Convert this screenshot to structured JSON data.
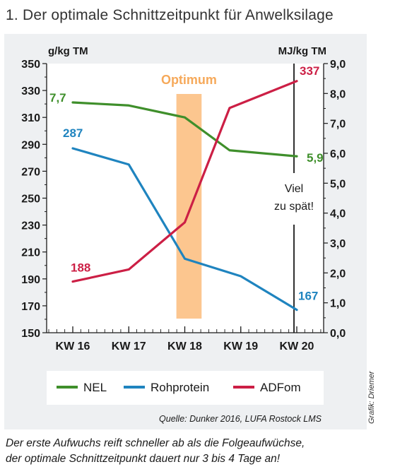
{
  "title": "1.  Der optimale Schnittzeitpunkt für Anwelksilage",
  "caption_line1": "Der erste Aufwuchs reift schneller ab als die Folgeaufwüchse,",
  "caption_line2": "der optimale Schnittzeitpunkt dauert nur 3 bis 4 Tage an!",
  "credit": "Grafik: Driemer",
  "chart_data": {
    "type": "line",
    "title": "Der optimale Schnittzeitpunkt für Anwelksilage",
    "categories": [
      "KW 16",
      "KW 17",
      "KW 18",
      "KW 19",
      "KW 20"
    ],
    "ylabel_left": "g/kg TM",
    "ylabel_right": "MJ/kg TM",
    "ylim_left": [
      150,
      350
    ],
    "yticks_left": [
      "350",
      "330",
      "310",
      "290",
      "270",
      "250",
      "230",
      "210",
      "190",
      "170",
      "150"
    ],
    "ylim_right": [
      0,
      9
    ],
    "yticks_right": [
      "9,0",
      "8,0",
      "7,0",
      "6,0",
      "5,0",
      "4,0",
      "3,0",
      "2,0",
      "1,0",
      "0,0"
    ],
    "series": [
      {
        "name": "NEL",
        "axis": "right",
        "color": "#3f8f2b",
        "x": [
          16,
          17,
          18,
          18.8,
          20
        ],
        "values": [
          7.7,
          7.6,
          7.2,
          6.1,
          5.9
        ],
        "start_label": "7,7",
        "end_label": "5,9"
      },
      {
        "name": "Rohprotein",
        "axis": "left",
        "color": "#1f84bf",
        "x": [
          16,
          17,
          18,
          19,
          20
        ],
        "values": [
          287,
          275,
          205,
          192,
          167
        ],
        "start_label": "287",
        "end_label": "167"
      },
      {
        "name": "ADFom",
        "axis": "left",
        "color": "#cc1f45",
        "x": [
          16,
          17,
          18,
          18.8,
          20
        ],
        "values": [
          188,
          197,
          232,
          317,
          337
        ],
        "start_label": "188",
        "end_label": "337"
      }
    ],
    "optimum_band": {
      "label": "Optimum",
      "x_from": 17.85,
      "x_to": 18.3,
      "color": "#fcc68f"
    },
    "too_late_line": {
      "x": 19.95,
      "label_line1": "Viel",
      "label_line2": "zu spät!"
    },
    "legend": {
      "placement": "bottom",
      "items": [
        "NEL",
        "Rohprotein",
        "ADFom"
      ]
    },
    "source": "Quelle: Dunker 2016, LUFA Rostock LMS",
    "grid": false
  }
}
